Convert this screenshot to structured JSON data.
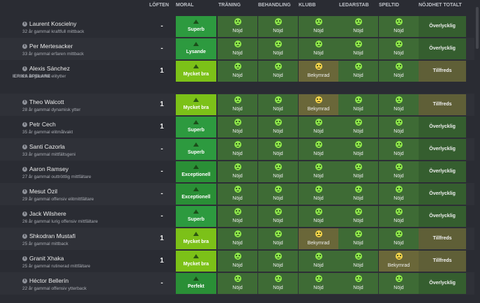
{
  "header": {
    "promises": "LÖFTEN",
    "moral": "MORAL",
    "training": "TRÄNING",
    "treatment": "BEHANDLING",
    "club": "KLUBB",
    "management": "LEDARSTAB",
    "playtime": "SPELTID",
    "total": "NÖJDHET TOTALT"
  },
  "section_label": "IERIKA SPELARE",
  "players": [
    {
      "name": "Laurent Koscielny",
      "desc": "32 år gammal kraftfull mittback",
      "promise": "-",
      "moral": "Superb",
      "moral_type": "superb",
      "cells": [
        "Nöjd",
        "Nöjd",
        "Nöjd",
        "Nöjd",
        "Nöjd"
      ],
      "total": "Överlycklig"
    },
    {
      "name": "Per Mertesacker",
      "desc": "33 år gammal erfaren mittback",
      "promise": "-",
      "moral": "Lysande",
      "moral_type": "lysande",
      "cells": [
        "Nöjd",
        "Nöjd",
        "Nöjd",
        "Nöjd",
        "Nöjd"
      ],
      "total": "Överlycklig"
    },
    {
      "name": "Alexis Sánchez",
      "desc": "29 år gammal elitytter",
      "promise": "1",
      "moral": "Mycket bra",
      "moral_type": "mb",
      "cells": [
        "Nöjd",
        "Nöjd",
        "Bekymrad",
        "Nöjd",
        "Nöjd"
      ],
      "total": "Tillfreds"
    },
    {
      "name": "Theo Walcott",
      "desc": "28 år gammal dynamisk ytter",
      "promise": "1",
      "moral": "Mycket bra",
      "moral_type": "mb",
      "cells": [
        "Nöjd",
        "Nöjd",
        "Bekymrad",
        "Nöjd",
        "Nöjd"
      ],
      "total": "Tillfreds"
    },
    {
      "name": "Petr Cech",
      "desc": "35 år gammal elitmålvakt",
      "promise": "1",
      "moral": "Superb",
      "moral_type": "superb",
      "cells": [
        "Nöjd",
        "Nöjd",
        "Nöjd",
        "Nöjd",
        "Nöjd"
      ],
      "total": "Överlycklig"
    },
    {
      "name": "Santi Cazorla",
      "desc": "33 år gammal mittfältsgeni",
      "promise": "-",
      "moral": "Superb",
      "moral_type": "superb",
      "cells": [
        "Nöjd",
        "Nöjd",
        "Nöjd",
        "Nöjd",
        "Nöjd"
      ],
      "total": "Överlycklig"
    },
    {
      "name": "Aaron Ramsey",
      "desc": "27 år gammal outtröttlig mittfältare",
      "promise": "-",
      "moral": "Exceptionell",
      "moral_type": "exc",
      "cells": [
        "Nöjd",
        "Nöjd",
        "Nöjd",
        "Nöjd",
        "Nöjd"
      ],
      "total": "Överlycklig"
    },
    {
      "name": "Mesut Özil",
      "desc": "29 år gammal offensiv elitmittfältare",
      "promise": "-",
      "moral": "Exceptionell",
      "moral_type": "exc",
      "cells": [
        "Nöjd",
        "Nöjd",
        "Nöjd",
        "Nöjd",
        "Nöjd"
      ],
      "total": "Överlycklig"
    },
    {
      "name": "Jack Wilshere",
      "desc": "26 år gammal lurig offensiv mittfältare",
      "promise": "-",
      "moral": "Superb",
      "moral_type": "superb",
      "cells": [
        "Nöjd",
        "Nöjd",
        "Nöjd",
        "Nöjd",
        "Nöjd"
      ],
      "total": "Överlycklig"
    },
    {
      "name": "Shkodran Mustafi",
      "desc": "25 år gammal mittback",
      "promise": "1",
      "moral": "Mycket bra",
      "moral_type": "mb",
      "cells": [
        "Nöjd",
        "Nöjd",
        "Bekymrad",
        "Nöjd",
        "Nöjd"
      ],
      "total": "Tillfreds"
    },
    {
      "name": "Granit Xhaka",
      "desc": "25 år gammal rutinerad mittfältare",
      "promise": "1",
      "moral": "Mycket bra",
      "moral_type": "mb",
      "cells": [
        "Nöjd",
        "Nöjd",
        "Nöjd",
        "Nöjd",
        "Bekymrad"
      ],
      "total": "Tillfreds"
    },
    {
      "name": "Héctor Bellerín",
      "desc": "22 år gammal offensiv ytterback",
      "promise": "-",
      "moral": "Perfekt",
      "moral_type": "perfekt",
      "cells": [
        "Nöjd",
        "Nöjd",
        "Nöjd",
        "Nöjd",
        "Nöjd"
      ],
      "total": "Överlycklig"
    }
  ]
}
